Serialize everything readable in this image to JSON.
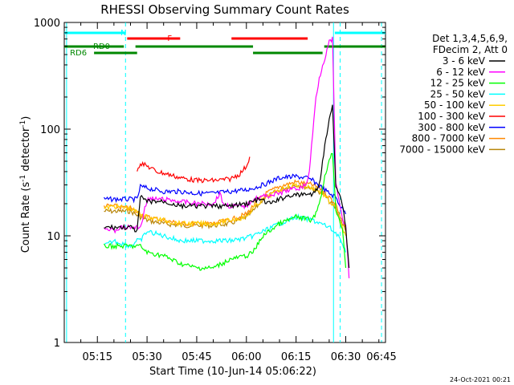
{
  "chart_data": {
    "type": "line",
    "title": "RHESSI Observing Summary Count Rates",
    "xlabel": "Start Time (10-Jun-14 05:06:22)",
    "ylabel_main": "Count Rate (s",
    "ylabel_sup1": "-1",
    "ylabel_mid": " detector",
    "ylabel_sup2": "-1",
    "ylabel_end": ")",
    "footer_date": "24-Oct-2021 00:21",
    "yscale": "log",
    "ylim": [
      1,
      1000
    ],
    "xlim_minutes": [
      5.0,
      102.0
    ],
    "y_ticks": [
      {
        "value": 1,
        "label": "1"
      },
      {
        "value": 10,
        "label": "10"
      },
      {
        "value": 100,
        "label": "100"
      },
      {
        "value": 1000,
        "label": "1000"
      }
    ],
    "x_ticks": [
      {
        "minute": 15,
        "label": "05:15"
      },
      {
        "minute": 30,
        "label": "05:30"
      },
      {
        "minute": 45,
        "label": "05:45"
      },
      {
        "minute": 60,
        "label": "06:00"
      },
      {
        "minute": 75,
        "label": "06:15"
      },
      {
        "minute": 90,
        "label": "06:30"
      },
      {
        "minute": 105,
        "label": "06:45"
      }
    ],
    "legend": {
      "header1": "Det 1,3,4,5,6,9,",
      "header2": "FDecim 2, Att 0",
      "entries": [
        {
          "label": "3 - 6 keV",
          "color": "#000000"
        },
        {
          "label": "6 - 12 keV",
          "color": "#ff00ff"
        },
        {
          "label": "12 - 25 keV",
          "color": "#00ff00"
        },
        {
          "label": "25 - 50 keV",
          "color": "#00ffff"
        },
        {
          "label": "50 - 100 keV",
          "color": "#ffcc00"
        },
        {
          "label": "100 - 300 keV",
          "color": "#ff0000"
        },
        {
          "label": "300 - 800 keV",
          "color": "#0000ff"
        },
        {
          "label": "800 - 7000 keV",
          "color": "#ff8800"
        },
        {
          "label": "7000 - 15000 keV",
          "color": "#b8860b"
        }
      ]
    },
    "flags": [
      {
        "label": "N",
        "color": "#00ffff",
        "row": 0,
        "segments": [
          [
            5,
            23.5
          ],
          [
            86.7,
            102
          ]
        ]
      },
      {
        "label": "F",
        "color": "#ff0000",
        "row": 1,
        "segments": [
          [
            24,
            40
          ],
          [
            55.5,
            78.5
          ]
        ]
      },
      {
        "label": "RD0",
        "color": "#008800",
        "row": 2,
        "segments": [
          [
            5,
            23
          ],
          [
            26.5,
            62
          ],
          [
            83.5,
            102
          ]
        ]
      },
      {
        "label": "RD6",
        "color": "#008800",
        "row": 3,
        "segments": [
          [
            14,
            27
          ],
          [
            62,
            83
          ]
        ]
      }
    ],
    "vlines": [
      {
        "minute": 5.7,
        "style": "solid",
        "color": "#00ffff"
      },
      {
        "minute": 23.5,
        "style": "dashed",
        "color": "#00ffff"
      },
      {
        "minute": 86.3,
        "style": "solid",
        "color": "#00ffff"
      },
      {
        "minute": 88.3,
        "style": "dashed",
        "color": "#00ffff"
      },
      {
        "minute": 100.8,
        "style": "dashed",
        "color": "#00ffff"
      }
    ],
    "series": [
      {
        "name": "3 - 6 keV",
        "color": "#000000",
        "x": [
          17,
          20,
          22,
          25,
          27,
          28,
          30,
          35,
          40,
          45,
          50,
          55,
          60,
          62,
          64,
          67,
          70,
          73,
          76,
          78,
          80,
          82,
          83,
          84,
          85,
          86,
          87,
          88,
          89,
          90,
          91
        ],
        "y": [
          12,
          12,
          12,
          12,
          11,
          23,
          21,
          21,
          19,
          19,
          19,
          19,
          20,
          21,
          22,
          20,
          22,
          24,
          24,
          25,
          24,
          30,
          50,
          80,
          120,
          170,
          30,
          25,
          20,
          12,
          5
        ]
      },
      {
        "name": "6 - 12 keV",
        "color": "#ff00ff",
        "x": [
          17,
          20,
          22,
          25,
          27,
          28,
          30,
          35,
          40,
          45,
          50,
          52,
          53,
          55,
          58,
          60,
          62,
          64,
          67,
          70,
          73,
          76,
          78,
          79,
          80,
          81,
          82,
          83,
          84,
          85,
          86,
          87,
          88,
          89,
          90,
          91
        ],
        "y": [
          12,
          11,
          12,
          12,
          12,
          12,
          22,
          22,
          21,
          20,
          20,
          25,
          20,
          19,
          19,
          19,
          22,
          23,
          24,
          25,
          27,
          28,
          30,
          40,
          90,
          200,
          300,
          400,
          500,
          650,
          700,
          30,
          22,
          14,
          12,
          4
        ]
      },
      {
        "name": "12 - 25 keV",
        "color": "#00ff00",
        "x": [
          17,
          18,
          20,
          25,
          27,
          28,
          30,
          35,
          40,
          45,
          50,
          55,
          60,
          62,
          65,
          70,
          75,
          80,
          82,
          84,
          85,
          86,
          87,
          88,
          89,
          90
        ],
        "y": [
          8,
          8,
          8,
          8,
          8,
          8,
          7,
          6.5,
          5.5,
          5,
          5,
          6,
          6.5,
          7,
          10,
          13,
          15,
          14,
          20,
          40,
          50,
          60,
          18,
          14,
          12,
          5
        ]
      },
      {
        "name": "25 - 50 keV",
        "color": "#00ffff",
        "x": [
          17,
          20,
          25,
          27,
          28,
          30,
          35,
          40,
          45,
          50,
          55,
          60,
          62,
          65,
          70,
          75,
          80,
          85,
          88,
          89,
          90
        ],
        "y": [
          8,
          9,
          8,
          9,
          9,
          11,
          10,
          9,
          9,
          9,
          9,
          9.5,
          10,
          11,
          13,
          15,
          14,
          12,
          10,
          8,
          7
        ]
      },
      {
        "name": "50 - 100 keV",
        "color": "#ffcc00",
        "x": [
          17,
          20,
          25,
          28,
          30,
          35,
          40,
          45,
          50,
          55,
          60,
          62,
          65,
          70,
          75,
          80,
          83,
          85,
          87,
          88,
          89,
          90
        ],
        "y": [
          18,
          19,
          18,
          16,
          15,
          14,
          13,
          13,
          13,
          14,
          15,
          18,
          22,
          27,
          30,
          28,
          25,
          21,
          18,
          14,
          12,
          10
        ]
      },
      {
        "name": "100 - 300 keV",
        "color": "#ff0000",
        "x": [
          27,
          28,
          30,
          33,
          36,
          40,
          45,
          50,
          55,
          58,
          60,
          61
        ],
        "y": [
          42,
          48,
          45,
          40,
          38,
          35,
          33,
          33,
          34,
          38,
          45,
          55
        ]
      },
      {
        "name": "300 - 800 keV",
        "color": "#0000ff",
        "x": [
          17,
          20,
          22,
          25,
          27,
          28,
          30,
          35,
          40,
          45,
          50,
          55,
          60,
          62,
          65,
          70,
          75,
          78,
          80,
          83,
          85,
          87,
          88,
          89,
          90
        ],
        "y": [
          22,
          22,
          22,
          22,
          22,
          29,
          28,
          26,
          26,
          25,
          25,
          26,
          27,
          28,
          30,
          35,
          36,
          35,
          33,
          28,
          25,
          23,
          20,
          18,
          16
        ]
      },
      {
        "name": "800 - 7000 keV",
        "color": "#ff8800",
        "x": [
          17,
          20,
          25,
          28,
          30,
          35,
          40,
          45,
          50,
          55,
          60,
          62,
          65,
          70,
          75,
          80,
          83,
          85,
          87,
          88,
          89,
          90
        ],
        "y": [
          19,
          19,
          18,
          16,
          15,
          14,
          13,
          13,
          13,
          14,
          16,
          19,
          24,
          29,
          32,
          30,
          27,
          23,
          20,
          16,
          14,
          12
        ]
      },
      {
        "name": "7000 - 15000 keV",
        "color": "#b8860b",
        "x": [
          17,
          20,
          25,
          28,
          30,
          35,
          40,
          45,
          50,
          55,
          60,
          62,
          65,
          70,
          75,
          80,
          83,
          85,
          87,
          88,
          89,
          90
        ],
        "y": [
          17,
          17,
          17,
          15,
          14,
          13,
          12.5,
          12.5,
          12.5,
          13,
          15,
          17,
          22,
          27,
          30,
          28,
          25,
          21,
          18,
          15,
          13,
          11
        ]
      }
    ]
  }
}
